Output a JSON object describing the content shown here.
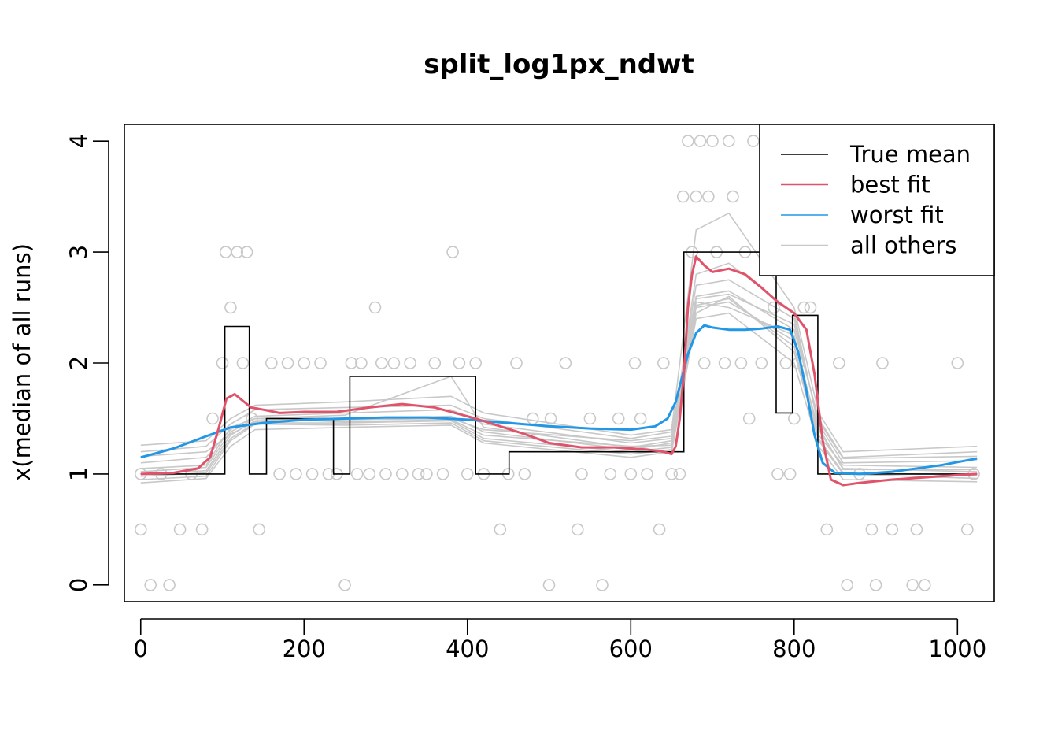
{
  "chart_data": {
    "type": "line",
    "title": "split_log1px_ndwt",
    "xlabel": "",
    "ylabel": "x(median of all runs)",
    "xlim": [
      -20,
      1045
    ],
    "ylim": [
      -0.15,
      4.15
    ],
    "x_ticks": [
      0,
      200,
      400,
      600,
      800,
      1000
    ],
    "y_ticks": [
      0,
      1,
      2,
      3,
      4
    ],
    "grid": false,
    "legend_position": "top-right",
    "legend": [
      {
        "label": "True mean",
        "color": "#000000"
      },
      {
        "label": "best fit",
        "color": "#DF536B"
      },
      {
        "label": "worst fit",
        "color": "#2297E6"
      },
      {
        "label": "all others",
        "color": "#C8C8C8"
      }
    ],
    "colors": {
      "true_mean": "#000000",
      "best": "#DF536B",
      "worst": "#2297E6",
      "others": "#C8C8C8",
      "points": "#C8C8C8"
    },
    "true_mean": {
      "x": [
        0,
        103,
        103,
        133,
        133,
        154,
        154,
        236,
        236,
        256,
        256,
        410,
        410,
        451,
        451,
        665,
        665,
        778,
        778,
        798,
        798,
        829,
        829,
        1024
      ],
      "y": [
        1,
        1,
        2.33,
        2.33,
        1,
        1,
        1.5,
        1.5,
        1,
        1,
        1.88,
        1.88,
        1,
        1,
        1.2,
        1.2,
        3,
        3,
        1.55,
        1.55,
        2.43,
        2.43,
        1,
        1
      ]
    },
    "series": [
      {
        "name": "best fit",
        "color": "#DF536B",
        "x": [
          0,
          40,
          70,
          85,
          95,
          105,
          115,
          125,
          135,
          150,
          170,
          200,
          240,
          280,
          320,
          360,
          390,
          410,
          440,
          470,
          500,
          540,
          580,
          620,
          640,
          650,
          655,
          660,
          665,
          670,
          675,
          680,
          690,
          700,
          720,
          740,
          760,
          780,
          800,
          815,
          825,
          835,
          845,
          860,
          880,
          920,
          1000,
          1024
        ],
        "y": [
          1.0,
          1.01,
          1.05,
          1.15,
          1.4,
          1.68,
          1.72,
          1.66,
          1.6,
          1.58,
          1.55,
          1.56,
          1.56,
          1.6,
          1.63,
          1.6,
          1.54,
          1.5,
          1.43,
          1.36,
          1.28,
          1.24,
          1.24,
          1.22,
          1.2,
          1.18,
          1.25,
          1.5,
          1.9,
          2.5,
          2.8,
          2.96,
          2.88,
          2.82,
          2.85,
          2.8,
          2.68,
          2.55,
          2.45,
          2.3,
          1.9,
          1.3,
          0.95,
          0.9,
          0.92,
          0.95,
          0.99,
          1.0
        ]
      },
      {
        "name": "worst fit",
        "color": "#2297E6",
        "x": [
          0,
          40,
          80,
          110,
          150,
          200,
          250,
          300,
          350,
          400,
          450,
          500,
          550,
          600,
          630,
          645,
          655,
          662,
          670,
          680,
          690,
          700,
          720,
          740,
          760,
          780,
          795,
          805,
          815,
          825,
          835,
          850,
          880,
          920,
          980,
          1024
        ],
        "y": [
          1.15,
          1.23,
          1.34,
          1.42,
          1.46,
          1.49,
          1.5,
          1.51,
          1.51,
          1.49,
          1.46,
          1.43,
          1.41,
          1.4,
          1.43,
          1.5,
          1.65,
          1.85,
          2.08,
          2.27,
          2.34,
          2.32,
          2.3,
          2.3,
          2.31,
          2.33,
          2.3,
          2.1,
          1.75,
          1.35,
          1.1,
          1.01,
          1.0,
          1.02,
          1.08,
          1.14
        ]
      },
      {
        "name": "all others",
        "color": "#C8C8C8",
        "x": [
          0,
          80,
          110,
          140,
          250,
          380,
          420,
          600,
          650,
          680,
          720,
          800,
          830,
          860,
          1024
        ],
        "y": [
          1.2,
          1.25,
          1.45,
          1.58,
          1.6,
          1.62,
          1.5,
          1.32,
          1.38,
          2.6,
          2.65,
          2.3,
          1.5,
          1.15,
          1.2
        ]
      },
      {
        "name": "all others",
        "color": "#C8C8C8",
        "x": [
          0,
          80,
          110,
          140,
          250,
          380,
          420,
          600,
          650,
          680,
          720,
          800,
          830,
          860,
          1024
        ],
        "y": [
          1.0,
          1.03,
          1.35,
          1.48,
          1.5,
          1.52,
          1.38,
          1.22,
          1.28,
          2.5,
          2.55,
          2.2,
          1.4,
          1.05,
          1.02
        ]
      },
      {
        "name": "all others",
        "color": "#C8C8C8",
        "x": [
          0,
          80,
          110,
          140,
          250,
          380,
          420,
          600,
          650,
          680,
          720,
          800,
          830,
          860,
          1024
        ],
        "y": [
          0.95,
          0.98,
          1.3,
          1.45,
          1.44,
          1.46,
          1.3,
          1.18,
          1.22,
          2.45,
          2.6,
          2.1,
          1.3,
          1.0,
          0.96
        ]
      },
      {
        "name": "all others",
        "color": "#C8C8C8",
        "x": [
          0,
          80,
          110,
          140,
          250,
          380,
          420,
          600,
          650,
          680,
          720,
          800,
          830,
          860,
          1024
        ],
        "y": [
          1.1,
          1.15,
          1.4,
          1.52,
          1.55,
          1.58,
          1.45,
          1.28,
          1.32,
          2.7,
          2.75,
          2.4,
          1.45,
          1.1,
          1.12
        ]
      },
      {
        "name": "all others",
        "color": "#C8C8C8",
        "x": [
          0,
          80,
          110,
          140,
          250,
          380,
          420,
          600,
          650,
          680,
          720,
          800,
          830,
          860,
          1024
        ],
        "y": [
          1.05,
          1.08,
          1.42,
          1.5,
          1.47,
          1.49,
          1.35,
          1.25,
          1.26,
          2.55,
          2.5,
          2.25,
          1.35,
          1.08,
          1.06
        ]
      },
      {
        "name": "all others",
        "color": "#C8C8C8",
        "x": [
          0,
          80,
          110,
          140,
          250,
          380,
          420,
          600,
          650,
          680,
          720,
          800,
          830,
          860,
          1024
        ],
        "y": [
          1.26,
          1.3,
          1.5,
          1.62,
          1.65,
          1.7,
          1.55,
          1.35,
          1.4,
          3.2,
          3.35,
          2.5,
          1.55,
          1.2,
          1.25
        ]
      },
      {
        "name": "all others",
        "color": "#C8C8C8",
        "x": [
          0,
          80,
          110,
          140,
          250,
          380,
          420,
          600,
          650,
          680,
          720,
          800,
          830,
          860,
          1024
        ],
        "y": [
          0.92,
          0.96,
          1.25,
          1.4,
          1.42,
          1.44,
          1.28,
          1.15,
          1.2,
          2.4,
          2.45,
          2.0,
          1.25,
          0.95,
          0.93
        ]
      },
      {
        "name": "all others",
        "color": "#C8C8C8",
        "x": [
          0,
          80,
          110,
          140,
          250,
          380,
          420,
          600,
          650,
          680,
          720,
          800,
          830,
          860,
          1024
        ],
        "y": [
          1.02,
          1.06,
          1.38,
          1.5,
          1.53,
          1.88,
          1.42,
          1.24,
          1.3,
          2.8,
          2.9,
          2.45,
          1.42,
          1.04,
          1.04
        ]
      },
      {
        "name": "all others",
        "color": "#C8C8C8",
        "x": [
          0,
          80,
          110,
          140,
          250,
          380,
          420,
          600,
          650,
          680,
          720,
          800,
          830,
          860,
          1024
        ],
        "y": [
          1.16,
          1.2,
          1.36,
          1.47,
          1.49,
          1.5,
          1.4,
          1.3,
          1.34,
          2.58,
          2.62,
          2.35,
          1.48,
          1.14,
          1.16
        ]
      },
      {
        "name": "all others",
        "color": "#C8C8C8",
        "x": [
          0,
          80,
          110,
          140,
          250,
          380,
          420,
          600,
          650,
          680,
          720,
          800,
          830,
          860,
          1024
        ],
        "y": [
          0.98,
          1.01,
          1.32,
          1.46,
          1.46,
          1.48,
          1.32,
          1.2,
          1.24,
          2.52,
          2.58,
          2.15,
          1.32,
          1.01,
          0.99
        ]
      }
    ],
    "points": {
      "x": [
        0,
        0,
        12,
        25,
        35,
        48,
        62,
        75,
        88,
        100,
        104,
        110,
        118,
        125,
        130,
        136,
        145,
        160,
        170,
        180,
        190,
        200,
        210,
        220,
        230,
        240,
        250,
        258,
        265,
        270,
        280,
        287,
        295,
        300,
        310,
        320,
        330,
        340,
        350,
        360,
        370,
        382,
        390,
        400,
        410,
        420,
        440,
        450,
        460,
        470,
        480,
        500,
        502,
        520,
        535,
        540,
        550,
        565,
        575,
        585,
        600,
        605,
        612,
        620,
        635,
        640,
        650,
        660,
        664,
        670,
        675,
        680,
        685,
        690,
        695,
        700,
        705,
        715,
        720,
        725,
        735,
        740,
        745,
        750,
        760,
        765,
        775,
        780,
        785,
        790,
        795,
        800,
        805,
        812,
        820,
        840,
        855,
        865,
        880,
        895,
        900,
        908,
        920,
        945,
        950,
        960,
        1000,
        1012,
        1020
      ],
      "y": [
        1,
        0.5,
        0,
        1,
        0,
        0.5,
        1,
        0.5,
        1.5,
        2,
        3,
        2.5,
        3,
        2,
        3,
        1.5,
        0.5,
        2,
        1,
        2,
        1,
        2,
        1,
        2,
        1,
        1,
        0,
        2,
        1,
        2,
        1,
        2.5,
        2,
        1,
        2,
        1,
        2,
        1,
        1,
        2,
        1,
        3,
        2,
        1,
        2,
        1,
        0.5,
        1,
        2,
        1,
        1.5,
        0,
        1.5,
        2,
        0.5,
        1,
        1.5,
        0,
        1,
        1.5,
        1,
        2,
        1.5,
        1,
        0.5,
        2,
        1,
        1,
        3.5,
        4,
        3,
        3.5,
        4,
        2,
        3.5,
        4,
        3,
        2,
        4,
        3.5,
        2,
        3,
        1.5,
        4,
        2,
        3,
        2.5,
        1,
        4,
        2,
        1,
        1.5,
        2,
        2.5,
        2.5,
        0.5,
        2,
        0,
        1,
        0.5,
        0,
        2,
        0.5,
        0,
        0.5,
        0,
        2,
        0.5,
        1
      ]
    }
  }
}
